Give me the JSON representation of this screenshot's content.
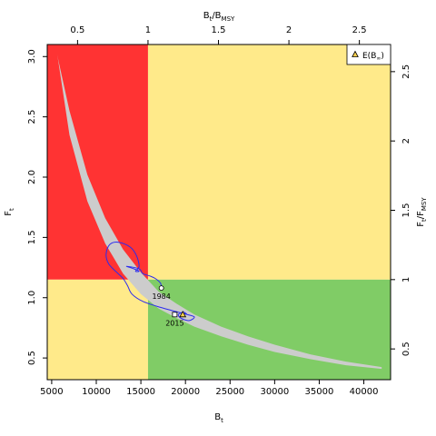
{
  "chart_data": {
    "type": "scatter",
    "bottom_axis": {
      "label": "B",
      "label_sub": "t",
      "ticks": [
        5000,
        10000,
        15000,
        20000,
        25000,
        30000,
        35000,
        40000
      ],
      "range": [
        4500,
        43000
      ]
    },
    "left_axis": {
      "label": "F",
      "label_sub": "t",
      "ticks": [
        0.5,
        1.0,
        1.5,
        2.0,
        2.5,
        3.0
      ],
      "tick_labels": [
        "0.5",
        "1.0",
        "1.5",
        "2.0",
        "2.5",
        "3.0"
      ],
      "range": [
        0.32,
        3.1
      ]
    },
    "top_axis": {
      "label": "B",
      "label_sub": "t",
      "label_sep": "/",
      "label2": "B",
      "label2_sub": "MSY",
      "ticks": [
        0.5,
        1,
        1.5,
        2,
        2.5
      ],
      "tick_labels": [
        "0.5",
        "1",
        "1.5",
        "2",
        "2.5"
      ],
      "bmsy": 15800
    },
    "right_axis": {
      "label": "F",
      "label_sub": "t",
      "label_sep": "/",
      "label2": "F",
      "label2_sub": "MSY",
      "ticks": [
        0.5,
        1,
        1.5,
        2,
        2.5
      ],
      "tick_labels": [
        "0.5",
        "1",
        "1.5",
        "2",
        "2.5"
      ],
      "fmsy": 1.15
    },
    "quadrants": {
      "red": "#ff3333",
      "yellow": "#ffea8a",
      "green": "#80cc66"
    },
    "equilibrium_band": {
      "color": "#cccccc",
      "upper": [
        [
          5600,
          3.02
        ],
        [
          7000,
          2.55
        ],
        [
          9000,
          2.02
        ],
        [
          11000,
          1.66
        ],
        [
          13000,
          1.4
        ],
        [
          15000,
          1.21
        ],
        [
          17000,
          1.05
        ],
        [
          19000,
          0.95
        ],
        [
          21000,
          0.86
        ],
        [
          24000,
          0.76
        ],
        [
          27000,
          0.68
        ],
        [
          30000,
          0.61
        ],
        [
          34000,
          0.53
        ],
        [
          38000,
          0.47
        ],
        [
          42000,
          0.425
        ]
      ],
      "lower": [
        [
          42000,
          0.41
        ],
        [
          38000,
          0.44
        ],
        [
          34000,
          0.49
        ],
        [
          30000,
          0.55
        ],
        [
          27000,
          0.61
        ],
        [
          24000,
          0.68
        ],
        [
          21000,
          0.76
        ],
        [
          19000,
          0.83
        ],
        [
          17000,
          0.91
        ],
        [
          15000,
          1.03
        ],
        [
          13000,
          1.2
        ],
        [
          11000,
          1.45
        ],
        [
          9000,
          1.8
        ],
        [
          7000,
          2.35
        ],
        [
          5700,
          2.98
        ]
      ]
    },
    "trajectory": {
      "color": "#2b2bee",
      "points": [
        [
          17300,
          1.08
        ],
        [
          17200,
          1.12
        ],
        [
          16600,
          1.16
        ],
        [
          16000,
          1.18
        ],
        [
          15200,
          1.2
        ],
        [
          14800,
          1.24
        ],
        [
          13400,
          1.26
        ],
        [
          14200,
          1.24
        ],
        [
          14800,
          1.22
        ],
        [
          14400,
          1.22
        ],
        [
          14800,
          1.26
        ],
        [
          14500,
          1.35
        ],
        [
          13800,
          1.42
        ],
        [
          12500,
          1.46
        ],
        [
          11500,
          1.44
        ],
        [
          11100,
          1.36
        ],
        [
          11400,
          1.28
        ],
        [
          12300,
          1.21
        ],
        [
          13000,
          1.16
        ],
        [
          13500,
          1.1
        ],
        [
          14000,
          1.03
        ],
        [
          15200,
          0.97
        ],
        [
          17200,
          0.92
        ],
        [
          19200,
          0.88
        ],
        [
          20200,
          0.86
        ],
        [
          21000,
          0.84
        ],
        [
          20400,
          0.81
        ],
        [
          19500,
          0.83
        ],
        [
          19200,
          0.86
        ],
        [
          19800,
          0.88
        ],
        [
          20200,
          0.86
        ]
      ]
    },
    "points": [
      {
        "name": "1984",
        "x": 17300,
        "y": 1.08,
        "marker": "circle"
      },
      {
        "name": "2015",
        "x": 18800,
        "y": 0.86,
        "marker": "square"
      },
      {
        "name": "E(B∞)",
        "x": 19700,
        "y": 0.86,
        "marker": "triangle"
      }
    ],
    "legend": {
      "position": "top-right",
      "label": "E(B",
      "label_sub": "∞",
      "label_end": ")"
    }
  }
}
